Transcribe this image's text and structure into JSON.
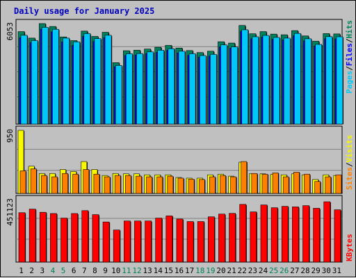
{
  "title": "Daily usage for January 2025",
  "colors": {
    "hits": "#00805c",
    "files": "#0000ff",
    "pages": "#00c8f8",
    "visits": "#f8f800",
    "sites": "#ff8000",
    "kbytes": "#ff0000",
    "weekend_label": "#00805c",
    "title": "#0000c0",
    "separator": "#000000"
  },
  "legend": {
    "hits": "Hits",
    "files": "Files",
    "pages": "Pages",
    "visits": "Visits",
    "sites": "Sites",
    "kbytes": "KBytes",
    "separator": "/"
  },
  "chart_data": {
    "type": "bar",
    "title": "Daily usage for January 2025",
    "categories": [
      "1",
      "2",
      "3",
      "4",
      "5",
      "6",
      "7",
      "8",
      "9",
      "10",
      "11",
      "12",
      "13",
      "14",
      "15",
      "16",
      "17",
      "18",
      "19",
      "20",
      "21",
      "22",
      "23",
      "24",
      "25",
      "26",
      "27",
      "28",
      "29",
      "30",
      "31"
    ],
    "weekend_days": [
      "4",
      "5",
      "11",
      "12",
      "18",
      "19",
      "25",
      "26"
    ],
    "panels": [
      {
        "name": "hits-files-pages",
        "max_label": "6053",
        "ymax": 6053,
        "series": [
          {
            "name": "Hits",
            "color": "#00805c",
            "values": [
              5570,
              5180,
              6053,
              5880,
              5250,
              5030,
              5600,
              5280,
              5530,
              3700,
              4420,
              4450,
              4520,
              4630,
              4740,
              4580,
              4430,
              4310,
              4390,
              4960,
              4880,
              5940,
              5440,
              5570,
              5420,
              5380,
              5630,
              5310,
              4990,
              5450,
              5430
            ]
          },
          {
            "name": "Files",
            "color": "#0000ff",
            "values": [
              5200,
              4900,
              5720,
              5560,
              4950,
              4740,
              5280,
              4980,
              5200,
              3450,
              4140,
              4160,
              4240,
              4320,
              4440,
              4290,
              4140,
              4030,
              4100,
              4660,
              4570,
              5600,
              5140,
              5240,
              5110,
              5070,
              5320,
              5010,
              4700,
              5140,
              5130
            ]
          },
          {
            "name": "Pages",
            "color": "#00c8f8",
            "values": [
              5350,
              5030,
              5830,
              5710,
              5180,
              4950,
              5450,
              5150,
              5350,
              3530,
              4240,
              4250,
              4350,
              4450,
              4540,
              4390,
              4240,
              4130,
              4200,
              4770,
              4650,
              5680,
              5260,
              5340,
              5220,
              5180,
              5460,
              5140,
              4800,
              5270,
              5260
            ]
          }
        ]
      },
      {
        "name": "visits-sites",
        "max_label": "950",
        "ymax": 950,
        "series": [
          {
            "name": "Visits",
            "color": "#f8f800",
            "values": [
              950,
              410,
              300,
              300,
              360,
              330,
              480,
              360,
              270,
              300,
              295,
              295,
              280,
              280,
              280,
              240,
              230,
              230,
              280,
              290,
              260,
              470,
              300,
              295,
              285,
              280,
              295,
              280,
              210,
              280,
              270
            ]
          },
          {
            "name": "Sites",
            "color": "#ff8000",
            "values": [
              340,
              370,
              270,
              250,
              300,
              290,
              360,
              290,
              250,
              270,
              270,
              260,
              250,
              250,
              260,
              230,
              215,
              210,
              250,
              270,
              250,
              480,
              300,
              290,
              310,
              250,
              320,
              290,
              180,
              250,
              280
            ]
          }
        ]
      },
      {
        "name": "kbytes",
        "max_label": "451123",
        "ymax": 451123,
        "series": [
          {
            "name": "KBytes",
            "color": "#ff0000",
            "values": [
              357000,
              383000,
              360000,
              351000,
              318000,
              351000,
              372000,
              343000,
              290000,
              232000,
              297000,
              297000,
              297000,
              318000,
              334000,
              311000,
              293000,
              293000,
              327000,
              347000,
              352000,
              417000,
              363000,
              413000,
              393000,
              403000,
              399000,
              408000,
              389000,
              436000,
              378000
            ]
          }
        ]
      }
    ]
  }
}
